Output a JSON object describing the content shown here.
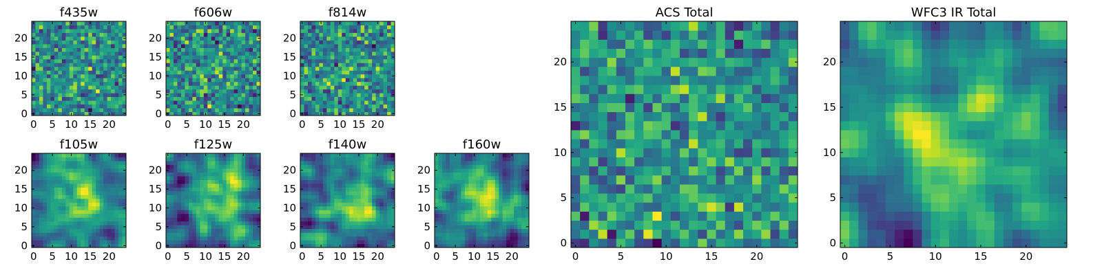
{
  "chart_data": [
    {
      "type": "heatmap",
      "title": "f435w",
      "x_ticks": [
        0,
        5,
        10,
        15,
        20
      ],
      "y_ticks": [
        0,
        5,
        10,
        15,
        20
      ],
      "xlim": [
        0,
        24
      ],
      "ylim": [
        0,
        24
      ],
      "grid": false,
      "colormap": "viridis",
      "values": "25x25 pixel noise (not individually legible)"
    },
    {
      "type": "heatmap",
      "title": "f606w",
      "x_ticks": [
        0,
        5,
        10,
        15,
        20
      ],
      "y_ticks": [
        0,
        5,
        10,
        15,
        20
      ],
      "xlim": [
        0,
        24
      ],
      "ylim": [
        0,
        24
      ],
      "grid": false,
      "colormap": "viridis",
      "values": "25x25 pixel noise (not individually legible)"
    },
    {
      "type": "heatmap",
      "title": "f814w",
      "x_ticks": [
        0,
        5,
        10,
        15,
        20
      ],
      "y_ticks": [
        0,
        5,
        10,
        15,
        20
      ],
      "xlim": [
        0,
        24
      ],
      "ylim": [
        0,
        24
      ],
      "grid": false,
      "colormap": "viridis",
      "values": "25x25 pixel noise (not individually legible)"
    },
    {
      "type": "heatmap",
      "title": "f105w",
      "x_ticks": [
        0,
        5,
        10,
        15,
        20
      ],
      "y_ticks": [
        0,
        5,
        10,
        15,
        20
      ],
      "xlim": [
        0,
        24
      ],
      "ylim": [
        0,
        24
      ],
      "grid": false,
      "colormap": "viridis",
      "values": "25x25 smoothed noise, brighter center"
    },
    {
      "type": "heatmap",
      "title": "f125w",
      "x_ticks": [
        0,
        5,
        10,
        15,
        20
      ],
      "y_ticks": [
        0,
        5,
        10,
        15,
        20
      ],
      "xlim": [
        0,
        24
      ],
      "ylim": [
        0,
        24
      ],
      "grid": false,
      "colormap": "viridis",
      "values": "25x25 smoothed noise, brighter center"
    },
    {
      "type": "heatmap",
      "title": "f140w",
      "x_ticks": [
        0,
        5,
        10,
        15,
        20
      ],
      "y_ticks": [
        0,
        5,
        10,
        15,
        20
      ],
      "xlim": [
        0,
        24
      ],
      "ylim": [
        0,
        24
      ],
      "grid": false,
      "colormap": "viridis",
      "values": "25x25 smoothed noise, brighter center"
    },
    {
      "type": "heatmap",
      "title": "f160w",
      "x_ticks": [
        0,
        5,
        10,
        15,
        20
      ],
      "y_ticks": [
        0,
        5,
        10,
        15,
        20
      ],
      "xlim": [
        0,
        24
      ],
      "ylim": [
        0,
        24
      ],
      "grid": false,
      "colormap": "viridis",
      "values": "25x25 smoothed noise, brighter center"
    },
    {
      "type": "heatmap",
      "title": "ACS Total",
      "x_ticks": [
        0,
        5,
        10,
        15,
        20
      ],
      "y_ticks": [
        0,
        5,
        10,
        15,
        20
      ],
      "xlim": [
        0,
        24
      ],
      "ylim": [
        0,
        24
      ],
      "grid": false,
      "colormap": "viridis",
      "values": "25x25 pixel noise, bright cluster near (14,7)"
    },
    {
      "type": "heatmap",
      "title": "WFC3 IR Total",
      "x_ticks": [
        0,
        5,
        10,
        15,
        20
      ],
      "y_ticks": [
        0,
        5,
        10,
        15,
        20
      ],
      "xlim": [
        0,
        24
      ],
      "ylim": [
        0,
        24
      ],
      "grid": false,
      "colormap": "viridis",
      "values": "25x25 smoothed noise, bright center near (13,12)"
    }
  ]
}
